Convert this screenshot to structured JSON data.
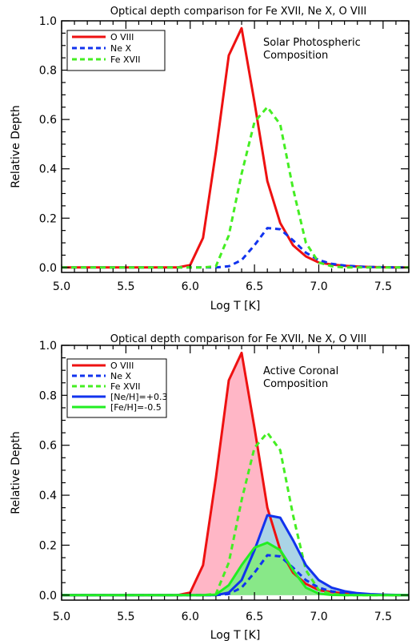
{
  "chart_data": [
    {
      "type": "line",
      "title": "Optical depth comparison for Fe XVII, Ne X, O VIII",
      "xlabel": "Log T [K]",
      "ylabel": "Relative Depth",
      "xlim": [
        5.0,
        7.7
      ],
      "ylim": [
        -0.02,
        1.0
      ],
      "xticks": [
        "5.0",
        "5.5",
        "6.0",
        "6.5",
        "7.0",
        "7.5"
      ],
      "yticks": [
        "0.0",
        "0.2",
        "0.4",
        "0.6",
        "0.8",
        "1.0"
      ],
      "annotation": [
        "Solar Photospheric",
        "Composition"
      ],
      "legend_position": "top-left",
      "series": [
        {
          "name": "O VIII",
          "style": "solid",
          "color": "#ee1111",
          "x": [
            5.0,
            5.1,
            5.2,
            5.3,
            5.4,
            5.5,
            5.6,
            5.7,
            5.8,
            5.9,
            6.0,
            6.1,
            6.2,
            6.3,
            6.4,
            6.5,
            6.6,
            6.7,
            6.8,
            6.9,
            7.0,
            7.1,
            7.2,
            7.3,
            7.4,
            7.5,
            7.6,
            7.7
          ],
          "y": [
            0,
            0,
            0,
            0,
            0,
            0,
            0,
            0,
            0,
            0,
            0.01,
            0.12,
            0.47,
            0.86,
            0.97,
            0.67,
            0.35,
            0.18,
            0.09,
            0.045,
            0.02,
            0.012,
            0.007,
            0.004,
            0.002,
            0.001,
            0,
            0
          ]
        },
        {
          "name": "Ne X",
          "style": "dashed",
          "color": "#1133ee",
          "x": [
            5.0,
            5.1,
            5.2,
            5.3,
            5.4,
            5.5,
            5.6,
            5.7,
            5.8,
            5.9,
            6.0,
            6.1,
            6.2,
            6.3,
            6.4,
            6.5,
            6.6,
            6.7,
            6.8,
            6.9,
            7.0,
            7.1,
            7.2,
            7.3,
            7.4,
            7.5,
            7.6,
            7.7
          ],
          "y": [
            0,
            0,
            0,
            0,
            0,
            0,
            0,
            0,
            0,
            0,
            0,
            0,
            0,
            0.005,
            0.03,
            0.09,
            0.16,
            0.155,
            0.11,
            0.06,
            0.03,
            0.015,
            0.008,
            0.004,
            0.002,
            0.001,
            0,
            0
          ]
        },
        {
          "name": "Fe XVII",
          "style": "dashed",
          "color": "#44ee22",
          "x": [
            5.0,
            5.1,
            5.2,
            5.3,
            5.4,
            5.5,
            5.6,
            5.7,
            5.8,
            5.9,
            6.0,
            6.1,
            6.2,
            6.3,
            6.4,
            6.5,
            6.6,
            6.7,
            6.8,
            6.9,
            7.0,
            7.1,
            7.2,
            7.3,
            7.4,
            7.5,
            7.6,
            7.7
          ],
          "y": [
            0,
            0,
            0,
            0,
            0,
            0,
            0,
            0,
            0,
            0,
            0,
            0,
            0.005,
            0.13,
            0.38,
            0.59,
            0.65,
            0.58,
            0.32,
            0.1,
            0.02,
            0.005,
            0,
            0,
            0,
            0,
            0,
            0
          ]
        }
      ]
    },
    {
      "type": "line",
      "title": "Optical depth comparison for Fe XVII, Ne X, O VIII",
      "xlabel": "Log T [K]",
      "ylabel": "Relative Depth",
      "xlim": [
        5.0,
        7.7
      ],
      "ylim": [
        -0.02,
        1.0
      ],
      "xticks": [
        "5.0",
        "5.5",
        "6.0",
        "6.5",
        "7.0",
        "7.5"
      ],
      "yticks": [
        "0.0",
        "0.2",
        "0.4",
        "0.6",
        "0.8",
        "1.0"
      ],
      "annotation": [
        "Active Coronal",
        "Composition"
      ],
      "legend_position": "top-left",
      "series": [
        {
          "name": "O VIII",
          "style": "solid",
          "color": "#ee1111",
          "fill": "#ffb6c6",
          "x": [
            5.0,
            5.1,
            5.2,
            5.3,
            5.4,
            5.5,
            5.6,
            5.7,
            5.8,
            5.9,
            6.0,
            6.1,
            6.2,
            6.3,
            6.4,
            6.5,
            6.6,
            6.7,
            6.8,
            6.9,
            7.0,
            7.1,
            7.2,
            7.3,
            7.4,
            7.5,
            7.6,
            7.7
          ],
          "y": [
            0,
            0,
            0,
            0,
            0,
            0,
            0,
            0,
            0,
            0,
            0.01,
            0.12,
            0.47,
            0.86,
            0.97,
            0.67,
            0.35,
            0.18,
            0.09,
            0.045,
            0.02,
            0.012,
            0.007,
            0.004,
            0.002,
            0.001,
            0,
            0
          ]
        },
        {
          "name": "Ne X",
          "style": "dashed",
          "color": "#1133ee",
          "x": [
            5.0,
            5.1,
            5.2,
            5.3,
            5.4,
            5.5,
            5.6,
            5.7,
            5.8,
            5.9,
            6.0,
            6.1,
            6.2,
            6.3,
            6.4,
            6.5,
            6.6,
            6.7,
            6.8,
            6.9,
            7.0,
            7.1,
            7.2,
            7.3,
            7.4,
            7.5,
            7.6,
            7.7
          ],
          "y": [
            0,
            0,
            0,
            0,
            0,
            0,
            0,
            0,
            0,
            0,
            0,
            0,
            0,
            0.005,
            0.03,
            0.09,
            0.16,
            0.155,
            0.11,
            0.06,
            0.03,
            0.015,
            0.008,
            0.004,
            0.002,
            0.001,
            0,
            0
          ]
        },
        {
          "name": "Fe XVII",
          "style": "dashed",
          "color": "#44ee22",
          "x": [
            5.0,
            5.1,
            5.2,
            5.3,
            5.4,
            5.5,
            5.6,
            5.7,
            5.8,
            5.9,
            6.0,
            6.1,
            6.2,
            6.3,
            6.4,
            6.5,
            6.6,
            6.7,
            6.8,
            6.9,
            7.0,
            7.1,
            7.2,
            7.3,
            7.4,
            7.5,
            7.6,
            7.7
          ],
          "y": [
            0,
            0,
            0,
            0,
            0,
            0,
            0,
            0,
            0,
            0,
            0,
            0,
            0.005,
            0.13,
            0.38,
            0.59,
            0.65,
            0.58,
            0.32,
            0.1,
            0.02,
            0.005,
            0,
            0,
            0,
            0,
            0,
            0
          ]
        },
        {
          "name": "[Ne/H]=+0.3",
          "style": "solid",
          "color": "#1133ee",
          "fill": "#aad4e6",
          "x": [
            5.0,
            5.1,
            5.2,
            5.3,
            5.4,
            5.5,
            5.6,
            5.7,
            5.8,
            5.9,
            6.0,
            6.1,
            6.2,
            6.3,
            6.4,
            6.5,
            6.6,
            6.7,
            6.8,
            6.9,
            7.0,
            7.1,
            7.2,
            7.3,
            7.4,
            7.5,
            7.6,
            7.7
          ],
          "y": [
            0,
            0,
            0,
            0,
            0,
            0,
            0,
            0,
            0,
            0,
            0,
            0,
            0,
            0.01,
            0.06,
            0.18,
            0.32,
            0.31,
            0.22,
            0.12,
            0.06,
            0.03,
            0.016,
            0.008,
            0.004,
            0.002,
            0.001,
            0
          ]
        },
        {
          "name": "[Fe/H]=-0.5",
          "style": "solid",
          "color": "#22ee22",
          "fill": "#88e888",
          "x": [
            5.0,
            5.1,
            5.2,
            5.3,
            5.4,
            5.5,
            5.6,
            5.7,
            5.8,
            5.9,
            6.0,
            6.1,
            6.2,
            6.3,
            6.4,
            6.5,
            6.6,
            6.7,
            6.8,
            6.9,
            7.0,
            7.1,
            7.2,
            7.3,
            7.4,
            7.5,
            7.6,
            7.7
          ],
          "y": [
            0,
            0,
            0,
            0,
            0,
            0,
            0,
            0,
            0,
            0,
            0,
            0,
            0.002,
            0.04,
            0.12,
            0.19,
            0.21,
            0.18,
            0.1,
            0.03,
            0.006,
            0.001,
            0,
            0,
            0,
            0,
            0,
            0
          ]
        }
      ]
    }
  ]
}
